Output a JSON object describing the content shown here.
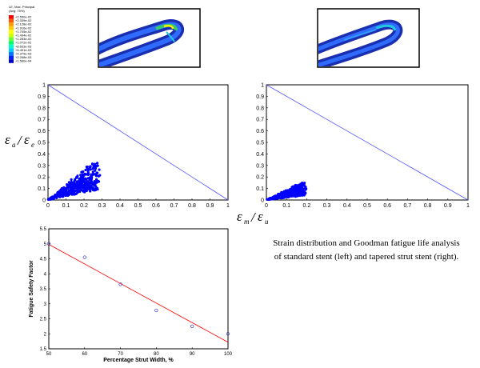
{
  "legend": {
    "title_line1": "LE, Max. Principal",
    "title_line2": "(Avg: 75%)",
    "entries": [
      "+2.550e-02",
      "+2.339e-02",
      "+2.128e-02",
      "+1.916e-02",
      "+1.705e-02",
      "+1.494e-02",
      "+1.283e-02",
      "+1.072e-02",
      "+8.603e-03",
      "+6.491e-03",
      "+4.379e-03",
      "+2.268e-03",
      "+1.560e-04"
    ],
    "colors": [
      "#ff0000",
      "#ff5500",
      "#ff9900",
      "#ffcc00",
      "#ffff00",
      "#ccff00",
      "#66ff33",
      "#00ff66",
      "#00ffcc",
      "#00ccff",
      "#0077ff",
      "#0022ff",
      "#0000cc"
    ]
  },
  "caption": {
    "line1": "Strain distribution and Goodman fatigue life analysis",
    "line2": "of standard stent (left) and tapered strut stent (right)."
  },
  "chart_data": [
    {
      "type": "scatter",
      "panel": "goodman-left",
      "xlabel": "εm/εu",
      "ylabel": "εa/εe",
      "xlim": [
        0,
        1
      ],
      "ylim": [
        0,
        1
      ],
      "xticks": [
        "0",
        "0.1",
        "0.2",
        "0.3",
        "0.4",
        "0.5",
        "0.6",
        "0.7",
        "0.8",
        "0.9",
        "1"
      ],
      "yticks": [
        "0",
        "0.1",
        "0.2",
        "0.3",
        "0.4",
        "0.5",
        "0.6",
        "0.7",
        "0.8",
        "0.9",
        "1"
      ],
      "goodman_line": [
        [
          0,
          1
        ],
        [
          1,
          0
        ]
      ],
      "cloud": {
        "x_range": [
          0,
          0.3
        ],
        "y_range": [
          0,
          0.36
        ],
        "color": "#0000ff"
      }
    },
    {
      "type": "scatter",
      "panel": "goodman-right",
      "xlim": [
        0,
        1
      ],
      "ylim": [
        0,
        1
      ],
      "xticks": [
        "0",
        "0.1",
        "0.2",
        "0.3",
        "0.4",
        "0.5",
        "0.6",
        "0.7",
        "0.8",
        "0.9",
        "1"
      ],
      "yticks": [
        "0",
        "0.1",
        "0.2",
        "0.3",
        "0.4",
        "0.5",
        "0.6",
        "0.7",
        "0.8",
        "0.9",
        "1"
      ],
      "goodman_line": [
        [
          0,
          1
        ],
        [
          1,
          0
        ]
      ],
      "cloud": {
        "x_range": [
          0,
          0.2
        ],
        "y_range": [
          0,
          0.16
        ],
        "color": "#0000ff"
      }
    },
    {
      "type": "scatter",
      "panel": "safety-factor",
      "xlabel": "Percentage Strut Width, %",
      "ylabel": "Fatigue Safety Factor",
      "xlim": [
        50,
        100
      ],
      "ylim": [
        1.5,
        5.5
      ],
      "xticks": [
        "50",
        "60",
        "70",
        "80",
        "90",
        "100"
      ],
      "yticks": [
        "1.5",
        "2",
        "2.5",
        "3",
        "3.5",
        "4",
        "4.5",
        "5",
        "5.5"
      ],
      "points": {
        "x": [
          50,
          60,
          70,
          80,
          90,
          100
        ],
        "y": [
          5.0,
          4.55,
          3.65,
          2.78,
          2.25,
          2.0
        ]
      },
      "fit_line": {
        "x": [
          50,
          100
        ],
        "y": [
          4.98,
          1.72
        ]
      },
      "point_color": "#3333cc",
      "line_color": "#ff0000"
    }
  ]
}
